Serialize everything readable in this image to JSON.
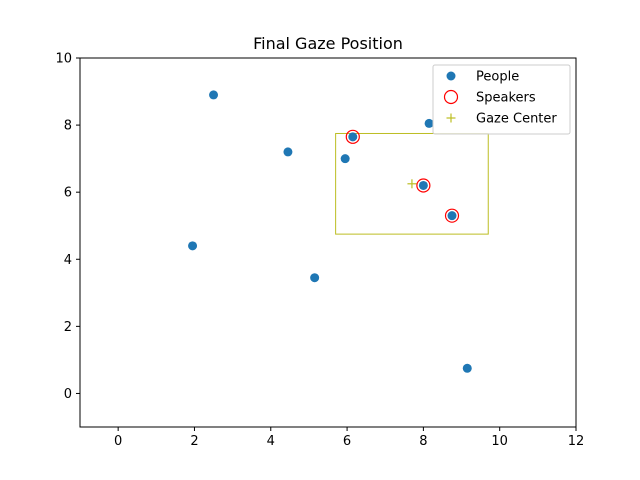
{
  "chart_data": {
    "type": "scatter",
    "title": "Final Gaze Position",
    "xlabel": "",
    "ylabel": "",
    "xlim": [
      -1,
      12
    ],
    "ylim": [
      -1,
      10
    ],
    "x_ticks": [
      0,
      2,
      4,
      6,
      8,
      10,
      12
    ],
    "y_ticks": [
      0,
      2,
      4,
      6,
      8,
      10
    ],
    "grid": false,
    "legend_position": "top-right",
    "series": [
      {
        "name": "People",
        "marker": "filled-circle",
        "color": "#1f77b4",
        "points": [
          {
            "x": 2.5,
            "y": 8.9
          },
          {
            "x": 4.45,
            "y": 7.2
          },
          {
            "x": 5.95,
            "y": 7.0
          },
          {
            "x": 6.15,
            "y": 7.65
          },
          {
            "x": 8.15,
            "y": 8.05
          },
          {
            "x": 8.0,
            "y": 6.2
          },
          {
            "x": 8.75,
            "y": 5.3
          },
          {
            "x": 1.95,
            "y": 4.4
          },
          {
            "x": 5.15,
            "y": 3.45
          },
          {
            "x": 9.15,
            "y": 0.75
          }
        ]
      },
      {
        "name": "Speakers",
        "marker": "hollow-circle",
        "color": "#ff0000",
        "points": [
          {
            "x": 6.15,
            "y": 7.65
          },
          {
            "x": 8.0,
            "y": 6.2
          },
          {
            "x": 8.75,
            "y": 5.3
          }
        ]
      },
      {
        "name": "Gaze Center",
        "marker": "plus",
        "color": "#bcbd22",
        "points": [
          {
            "x": 7.7,
            "y": 6.25
          }
        ]
      }
    ],
    "gaze_box": {
      "x0": 5.7,
      "x1": 9.7,
      "y0": 4.75,
      "y1": 7.75,
      "color": "#bcbd22"
    }
  }
}
